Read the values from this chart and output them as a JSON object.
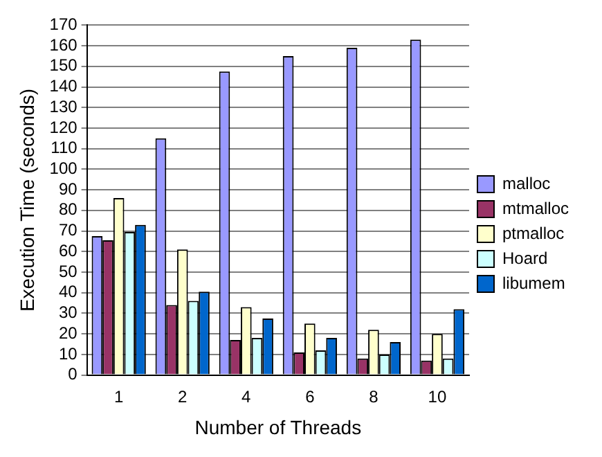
{
  "chart_data": {
    "type": "bar",
    "xlabel": "Number of Threads",
    "ylabel": "Execution Time (seconds)",
    "categories": [
      "1",
      "2",
      "4",
      "6",
      "8",
      "10"
    ],
    "series": [
      {
        "name": "malloc",
        "color": "#9999ff",
        "values": [
          67.5,
          115,
          147.5,
          155,
          159,
          163
        ]
      },
      {
        "name": "mtmalloc",
        "color": "#993366",
        "values": [
          65.5,
          34,
          17,
          11,
          8,
          7
        ]
      },
      {
        "name": "ptmalloc",
        "color": "#ffffcc",
        "values": [
          86,
          61,
          33,
          25,
          22,
          20
        ]
      },
      {
        "name": "Hoard",
        "color": "#ccffff",
        "values": [
          69.5,
          36,
          18,
          12,
          10,
          8
        ]
      },
      {
        "name": "libumem",
        "color": "#0066cc",
        "values": [
          73,
          40.5,
          27.5,
          18,
          16,
          32
        ]
      }
    ],
    "ylim": [
      0,
      170
    ],
    "yticks": [
      0,
      10,
      20,
      30,
      40,
      50,
      60,
      70,
      80,
      90,
      100,
      110,
      120,
      130,
      140,
      150,
      160,
      170
    ],
    "grid": "y",
    "legend": "right"
  }
}
